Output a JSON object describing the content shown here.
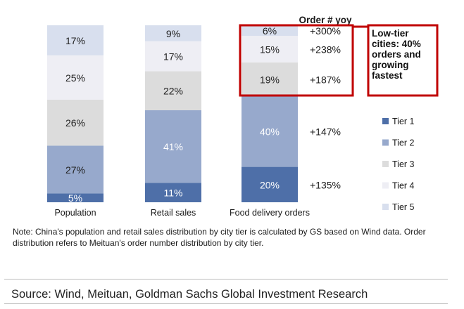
{
  "chart_data": {
    "type": "bar",
    "stacked": true,
    "categories": [
      "Population",
      "Retail sales",
      "Food delivery orders"
    ],
    "series": [
      {
        "name": "Tier 1",
        "color": "#4e6fa8",
        "values": [
          5,
          11,
          20
        ]
      },
      {
        "name": "Tier 2",
        "color": "#97a9cc",
        "values": [
          27,
          41,
          40
        ]
      },
      {
        "name": "Tier 3",
        "color": "#dcdcdc",
        "values": [
          26,
          22,
          19
        ]
      },
      {
        "name": "Tier 4",
        "color": "#eeeef4",
        "values": [
          25,
          17,
          15
        ]
      },
      {
        "name": "Tier 5",
        "color": "#d8dfee",
        "values": [
          17,
          9,
          6
        ]
      }
    ],
    "labels": [
      [
        "5%",
        "27%",
        "26%",
        "25%",
        "17%"
      ],
      [
        "11%",
        "41%",
        "22%",
        "17%",
        "9%"
      ],
      [
        "20%",
        "40%",
        "19%",
        "15%",
        "6%"
      ]
    ],
    "yoy_header": "Order # yoy",
    "yoy_values": [
      "+135%",
      "+147%",
      "+187%",
      "+238%",
      "+300%"
    ],
    "legend_position": "right",
    "ylim": [
      0,
      100
    ]
  },
  "callout": {
    "text": "Low-tier cities: 40% orders and growing fastest",
    "border_color": "#c00000"
  },
  "note": "Note: China's population and retail sales distribution by city tier is calculated  by GS based on Wind data. Order distribution refers to Meituan's order number distribution by city tier.",
  "source": "Source: Wind, Meituan, Goldman Sachs Global Investment Research"
}
